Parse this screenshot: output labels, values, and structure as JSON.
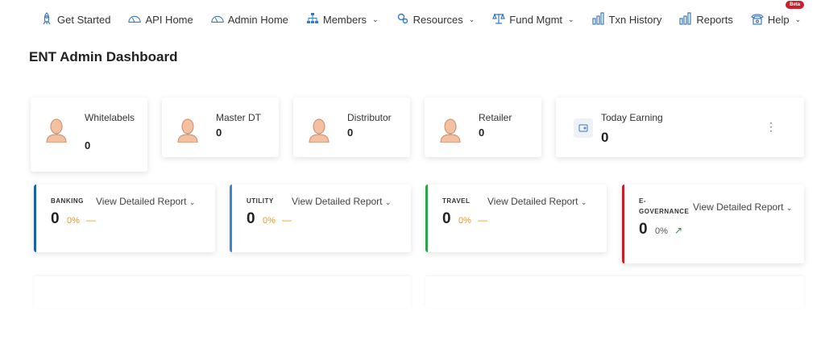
{
  "nav": [
    {
      "label": "Get Started",
      "icon": "rocket-icon"
    },
    {
      "label": "API Home",
      "icon": "gauge-icon"
    },
    {
      "label": "Admin Home",
      "icon": "gauge-icon"
    },
    {
      "label": "Members",
      "icon": "sitemap-icon",
      "dropdown": true
    },
    {
      "label": "Resources",
      "icon": "gears-icon",
      "dropdown": true
    },
    {
      "label": "Fund Mgmt",
      "icon": "scale-icon",
      "dropdown": true
    },
    {
      "label": "Txn History",
      "icon": "bar-chart-icon"
    },
    {
      "label": "Reports",
      "icon": "bar-chart-icon"
    },
    {
      "label": "Help",
      "icon": "phone-icon",
      "dropdown": true,
      "badge": "Beta"
    }
  ],
  "title": "ENT Admin Dashboard",
  "stats": [
    {
      "label": "Whitelabels",
      "value": "0"
    },
    {
      "label": "Master DT",
      "value": "0"
    },
    {
      "label": "Distributor",
      "value": "0"
    },
    {
      "label": "Retailer",
      "value": "0"
    },
    {
      "label": "Today Earning",
      "value": "0"
    }
  ],
  "reports": [
    {
      "category": "BANKING",
      "link": "View Detailed Report",
      "value": "0",
      "percent": "0%",
      "trend": "flat",
      "color": "#1f5fb0"
    },
    {
      "category": "UTILITY",
      "link": "View Detailed Report",
      "value": "0",
      "percent": "0%",
      "trend": "flat",
      "color": "#3a86d0"
    },
    {
      "category": "TRAVEL",
      "link": "View Detailed Report",
      "value": "0",
      "percent": "0%",
      "trend": "flat",
      "color": "#2ea24a"
    },
    {
      "category": "E-GOVERNANCE",
      "link": "View Detailed Report",
      "value": "0",
      "percent": "0%",
      "trend": "up",
      "color": "#c8202a"
    }
  ]
}
